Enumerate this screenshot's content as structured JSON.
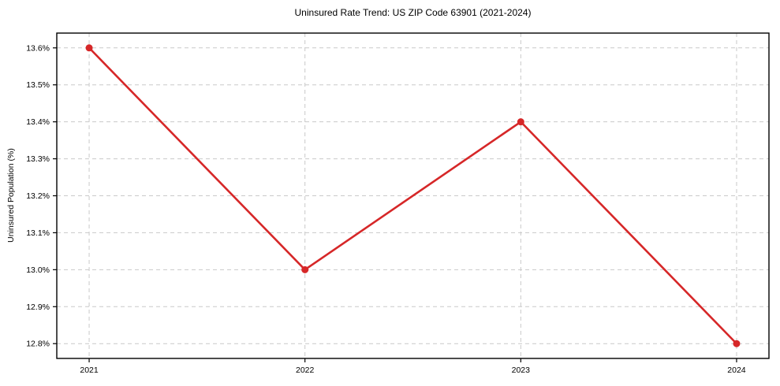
{
  "chart_data": {
    "type": "line",
    "title": "Uninsured Rate Trend: US ZIP Code 63901 (2021-2024)",
    "xlabel": "",
    "ylabel": "Uninsured Population (%)",
    "x": [
      2021,
      2022,
      2023,
      2024
    ],
    "x_tick_labels": [
      "2021",
      "2022",
      "2023",
      "2024"
    ],
    "series": [
      {
        "name": "Uninsured rate",
        "values": [
          13.6,
          13.0,
          13.4,
          12.8
        ],
        "color": "#d62728"
      }
    ],
    "y_ticks": [
      12.8,
      12.9,
      13.0,
      13.1,
      13.2,
      13.3,
      13.4,
      13.5,
      13.6
    ],
    "y_tick_labels": [
      "12.8%",
      "12.9%",
      "13.0%",
      "13.1%",
      "13.2%",
      "13.3%",
      "13.4%",
      "13.5%",
      "13.6%"
    ],
    "xlim": [
      2020.85,
      2024.15
    ],
    "ylim": [
      12.76,
      13.64
    ],
    "grid": true,
    "grid_style": "dashed",
    "grid_color": "#c9c9c9",
    "axis_color": "#000000",
    "background": "#ffffff",
    "legend": "none",
    "marker": "circle"
  }
}
